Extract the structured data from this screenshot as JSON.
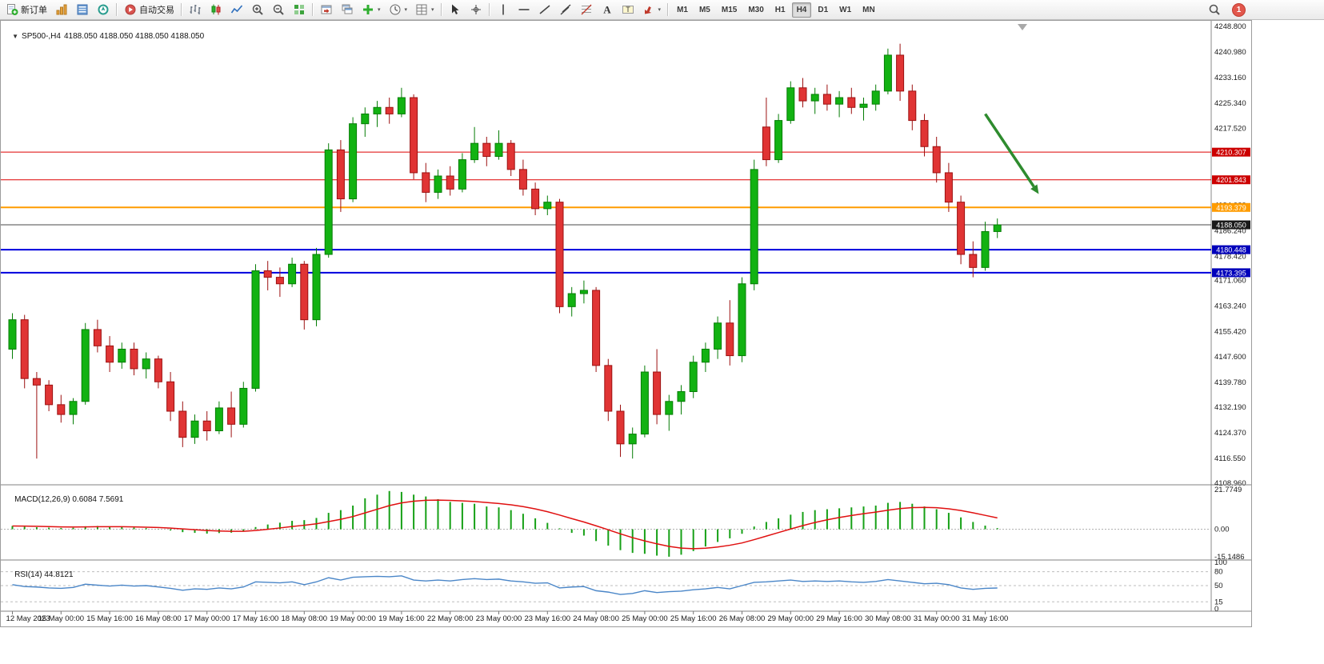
{
  "toolbar": {
    "buttons": [
      {
        "name": "new-order-button",
        "icon": "new-order",
        "label": "新订单"
      },
      {
        "name": "new-chart-button",
        "icon": "new-chart"
      },
      {
        "name": "market-watch-button",
        "icon": "market-watch"
      },
      {
        "name": "navigator-button",
        "icon": "navigator"
      },
      {
        "sep": true
      },
      {
        "name": "auto-trading-button",
        "icon": "autotrade",
        "label": "自动交易"
      },
      {
        "sep": true
      },
      {
        "name": "chart-bars-button",
        "icon": "chart-bars"
      },
      {
        "name": "chart-candles-button",
        "icon": "chart-candles"
      },
      {
        "name": "chart-line-button",
        "icon": "chart-line"
      },
      {
        "name": "zoom-in-button",
        "icon": "zoom-in"
      },
      {
        "name": "zoom-out-button",
        "icon": "zoom-out"
      },
      {
        "name": "tile-windows-button",
        "icon": "tile-windows"
      },
      {
        "sep": true
      },
      {
        "name": "auto-arrange-button",
        "icon": "auto-arrange"
      },
      {
        "name": "cascade-windows-button",
        "icon": "cascade-windows"
      },
      {
        "name": "add-indicator-button",
        "icon": "add-indicator",
        "caret": true
      },
      {
        "name": "periods-button",
        "icon": "periods",
        "caret": true
      },
      {
        "name": "templates-button",
        "icon": "templates",
        "caret": true
      },
      {
        "sep": true
      },
      {
        "name": "cursor-button",
        "icon": "cursor"
      },
      {
        "name": "crosshair-button",
        "icon": "crosshair"
      },
      {
        "sep": true
      },
      {
        "name": "vertical-line-button",
        "icon": "vertical-line"
      },
      {
        "name": "horizontal-line-button",
        "icon": "horizontal-line"
      },
      {
        "name": "trendline-button",
        "icon": "trendline"
      },
      {
        "name": "channel-button",
        "icon": "channel"
      },
      {
        "name": "fibonacci-button",
        "icon": "fibonacci"
      },
      {
        "name": "text-button",
        "icon": "text"
      },
      {
        "name": "text-label-button",
        "icon": "text-label"
      },
      {
        "name": "arrows-button",
        "icon": "arrows",
        "caret": true
      },
      {
        "sep": true
      }
    ],
    "timeframes": [
      "M1",
      "M5",
      "M15",
      "M30",
      "H1",
      "H4",
      "D1",
      "W1",
      "MN"
    ],
    "active_timeframe": "H4",
    "notification_count": "1"
  },
  "chart": {
    "symbol": "SP500-,H4",
    "ohlc": "4188.050 4188.050 4188.050 4188.050"
  },
  "chart_data": {
    "type": "candlestick",
    "symbol": "SP500-",
    "timeframe": "H4",
    "y_axis_labels": [
      "4248.800",
      "4240.980",
      "4233.160",
      "4225.340",
      "4217.520",
      "4209.700",
      "4201.880",
      "4194.060",
      "4186.240",
      "4178.420",
      "4171.060",
      "4163.240",
      "4155.420",
      "4147.600",
      "4139.780",
      "4132.190",
      "4124.370",
      "4116.550",
      "4108.960"
    ],
    "price_lines": [
      {
        "label": "4210.307",
        "price": 4210.307,
        "color": "#dd0000",
        "badge": "#cc0000",
        "width": 1
      },
      {
        "label": "4201.843",
        "price": 4201.843,
        "color": "#dd0000",
        "badge": "#cc0000",
        "width": 1
      },
      {
        "label": "4193.379",
        "price": 4193.379,
        "color": "#ff9c00",
        "badge": "#ff9c00",
        "width": 2
      },
      {
        "label": "4180.448",
        "price": 4180.448,
        "color": "#0000dd",
        "badge": "#0000bb",
        "width": 2
      },
      {
        "label": "4173.395",
        "price": 4173.395,
        "color": "#0000dd",
        "badge": "#0000bb",
        "width": 2
      }
    ],
    "bid_line": {
      "label": "4188.050",
      "price": 4188.05,
      "color": "#4a4a4a",
      "badge": "#1a1a1a",
      "width": 1
    },
    "candles": [
      [
        4150,
        4161,
        4147,
        4159
      ],
      [
        4159,
        4160.5,
        4138,
        4141
      ],
      [
        4141,
        4143,
        4116.5,
        4139
      ],
      [
        4139,
        4140.5,
        4131,
        4133
      ],
      [
        4133,
        4136,
        4127.5,
        4130
      ],
      [
        4130,
        4135,
        4127,
        4134
      ],
      [
        4134,
        4158,
        4133,
        4156
      ],
      [
        4156,
        4159,
        4149,
        4151
      ],
      [
        4151,
        4154,
        4143,
        4146
      ],
      [
        4146,
        4152,
        4144,
        4150
      ],
      [
        4150,
        4152,
        4142,
        4144
      ],
      [
        4144,
        4149,
        4141,
        4147
      ],
      [
        4147,
        4148,
        4138,
        4140
      ],
      [
        4140,
        4143,
        4128,
        4131
      ],
      [
        4131,
        4134,
        4120,
        4123
      ],
      [
        4123,
        4130,
        4121,
        4128
      ],
      [
        4128,
        4131,
        4122,
        4125
      ],
      [
        4125,
        4134,
        4124,
        4132
      ],
      [
        4132,
        4137,
        4123,
        4127
      ],
      [
        4127,
        4140,
        4126,
        4138
      ],
      [
        4138,
        4176,
        4137,
        4174
      ],
      [
        4174,
        4177,
        4168,
        4172
      ],
      [
        4172,
        4175,
        4166,
        4170
      ],
      [
        4170,
        4178,
        4169,
        4176
      ],
      [
        4176,
        4177,
        4156,
        4159
      ],
      [
        4159,
        4181,
        4157,
        4179
      ],
      [
        4179,
        4213,
        4178,
        4211
      ],
      [
        4211,
        4214,
        4192,
        4196
      ],
      [
        4196,
        4221,
        4195,
        4219
      ],
      [
        4219,
        4224,
        4215,
        4222
      ],
      [
        4222,
        4226,
        4218,
        4224
      ],
      [
        4224,
        4227,
        4219,
        4222
      ],
      [
        4222,
        4230,
        4221,
        4227
      ],
      [
        4227,
        4228,
        4202,
        4204
      ],
      [
        4204,
        4207,
        4195,
        4198
      ],
      [
        4198,
        4205,
        4196,
        4203
      ],
      [
        4203,
        4206,
        4197,
        4199
      ],
      [
        4199,
        4210,
        4198,
        4208
      ],
      [
        4208,
        4218,
        4207,
        4213
      ],
      [
        4213,
        4215,
        4206,
        4209
      ],
      [
        4209,
        4217,
        4208,
        4213
      ],
      [
        4213,
        4214,
        4203,
        4205
      ],
      [
        4205,
        4208,
        4197,
        4199
      ],
      [
        4199,
        4201,
        4191,
        4193
      ],
      [
        4193,
        4197,
        4191,
        4195
      ],
      [
        4195,
        4196,
        4161,
        4163
      ],
      [
        4163,
        4169,
        4160,
        4167
      ],
      [
        4167,
        4171,
        4164,
        4168
      ],
      [
        4168,
        4169,
        4143,
        4145
      ],
      [
        4145,
        4147,
        4128,
        4131
      ],
      [
        4131,
        4133,
        4117,
        4121
      ],
      [
        4121,
        4126,
        4116.5,
        4124
      ],
      [
        4124,
        4145,
        4123,
        4143
      ],
      [
        4143,
        4150,
        4127,
        4130
      ],
      [
        4130,
        4136,
        4125,
        4134
      ],
      [
        4134,
        4139,
        4130,
        4137
      ],
      [
        4137,
        4148,
        4135,
        4146
      ],
      [
        4146,
        4152,
        4143,
        4150
      ],
      [
        4150,
        4160,
        4147,
        4158
      ],
      [
        4158,
        4165,
        4145,
        4148
      ],
      [
        4148,
        4172,
        4146,
        4170
      ],
      [
        4170,
        4208,
        4168,
        4205
      ],
      [
        4218,
        4227,
        4206,
        4208
      ],
      [
        4208,
        4222,
        4207,
        4220
      ],
      [
        4220,
        4232,
        4219,
        4230
      ],
      [
        4230,
        4233,
        4224,
        4226
      ],
      [
        4226,
        4230,
        4222,
        4228
      ],
      [
        4228,
        4231,
        4223,
        4225
      ],
      [
        4225,
        4229,
        4221,
        4227
      ],
      [
        4227,
        4230,
        4222,
        4224
      ],
      [
        4224,
        4227,
        4220,
        4225
      ],
      [
        4225,
        4231,
        4223,
        4229
      ],
      [
        4229,
        4242,
        4228,
        4240
      ],
      [
        4240,
        4243.5,
        4226,
        4229
      ],
      [
        4229,
        4231,
        4217,
        4220
      ],
      [
        4220,
        4222,
        4209,
        4212
      ],
      [
        4212,
        4215,
        4201,
        4204
      ],
      [
        4204,
        4207,
        4192,
        4195
      ],
      [
        4195,
        4197,
        4176,
        4179
      ],
      [
        4179,
        4183,
        4172,
        4175
      ],
      [
        4175,
        4189,
        4174,
        4186
      ],
      [
        4186,
        4190,
        4184,
        4188.05
      ]
    ],
    "time_labels": [
      {
        "bar": 0,
        "label": "12 May 2023"
      },
      {
        "bar": 4,
        "label": "15 May 00:00"
      },
      {
        "bar": 8,
        "label": "15 May 16:00"
      },
      {
        "bar": 12,
        "label": "16 May 08:00"
      },
      {
        "bar": 16,
        "label": "17 May 00:00"
      },
      {
        "bar": 20,
        "label": "17 May 16:00"
      },
      {
        "bar": 24,
        "label": "18 May 08:00"
      },
      {
        "bar": 28,
        "label": "19 May 00:00"
      },
      {
        "bar": 32,
        "label": "19 May 16:00"
      },
      {
        "bar": 36,
        "label": "22 May 08:00"
      },
      {
        "bar": 40,
        "label": "23 May 00:00"
      },
      {
        "bar": 44,
        "label": "23 May 16:00"
      },
      {
        "bar": 48,
        "label": "24 May 08:00"
      },
      {
        "bar": 52,
        "label": "25 May 00:00"
      },
      {
        "bar": 56,
        "label": "25 May 16:00"
      },
      {
        "bar": 60,
        "label": "26 May 08:00"
      },
      {
        "bar": 64,
        "label": "29 May 00:00"
      },
      {
        "bar": 68,
        "label": "29 May 16:00"
      },
      {
        "bar": 72,
        "label": "30 May 08:00"
      },
      {
        "bar": 76,
        "label": "31 May 00:00"
      },
      {
        "bar": 80,
        "label": "31 May 16:00"
      }
    ],
    "macd": {
      "name": "MACD(12,26,9)",
      "value": "0.6084",
      "signal_value": "7.5691",
      "scale_max": 21.7749,
      "scale_min": -15.1486,
      "scale_labels": [
        "21.7749",
        "0.00",
        "-15.1486"
      ],
      "scale_label_values": [
        21.7749,
        0,
        -15.1486
      ],
      "values": [
        1.8,
        1.4,
        1.1,
        0.9,
        0.7,
        0.8,
        1.6,
        1.8,
        1.5,
        1.2,
        0.9,
        0.6,
        0.1,
        -0.7,
        -1.6,
        -2.0,
        -2.4,
        -2.1,
        -1.9,
        -1.1,
        1.2,
        2.6,
        3.6,
        4.6,
        5.0,
        6.2,
        9.0,
        10.5,
        13.0,
        17.0,
        19.0,
        21.0,
        20.5,
        19.0,
        18.0,
        16.5,
        15.0,
        14.5,
        14.0,
        12.5,
        12.0,
        10.5,
        8.5,
        6.0,
        3.5,
        0.5,
        -2.0,
        -3.5,
        -6.5,
        -9.0,
        -11.5,
        -13.0,
        -13.5,
        -14.5,
        -15.1,
        -14.0,
        -12.0,
        -9.5,
        -7.0,
        -5.0,
        -2.5,
        1.5,
        4.0,
        6.0,
        8.0,
        9.5,
        10.5,
        11.0,
        11.5,
        12.0,
        12.5,
        13.0,
        14.5,
        15.0,
        14.0,
        12.5,
        11.0,
        9.0,
        6.5,
        4.0,
        2.0,
        0.61
      ]
    },
    "rsi": {
      "name": "RSI(14)",
      "value": "44.8121",
      "levels": [
        80,
        50,
        15
      ],
      "level_labels": [
        "100",
        "80",
        "50",
        "15",
        "0"
      ],
      "level_label_values": [
        100,
        80,
        50,
        15,
        0
      ],
      "values": [
        52,
        48,
        47,
        45,
        44,
        46,
        53,
        51,
        49,
        51,
        49,
        50,
        47,
        44,
        40,
        43,
        42,
        45,
        43,
        47,
        58,
        57,
        56,
        58,
        52,
        58,
        67,
        62,
        68,
        69,
        70,
        69,
        71,
        62,
        60,
        62,
        60,
        63,
        65,
        63,
        64,
        60,
        58,
        55,
        56,
        45,
        47,
        48,
        39,
        36,
        31,
        33,
        39,
        35,
        37,
        38,
        41,
        43,
        46,
        43,
        50,
        57,
        58,
        60,
        62,
        59,
        60,
        59,
        60,
        58,
        57,
        59,
        63,
        60,
        57,
        54,
        55,
        52,
        45,
        42,
        44,
        44.81
      ]
    },
    "arrow": {
      "from_bar": 80.3,
      "from_price": 4222,
      "to_bar": 84.7,
      "to_price": 4197.5,
      "color": "#2e8b2e"
    }
  }
}
